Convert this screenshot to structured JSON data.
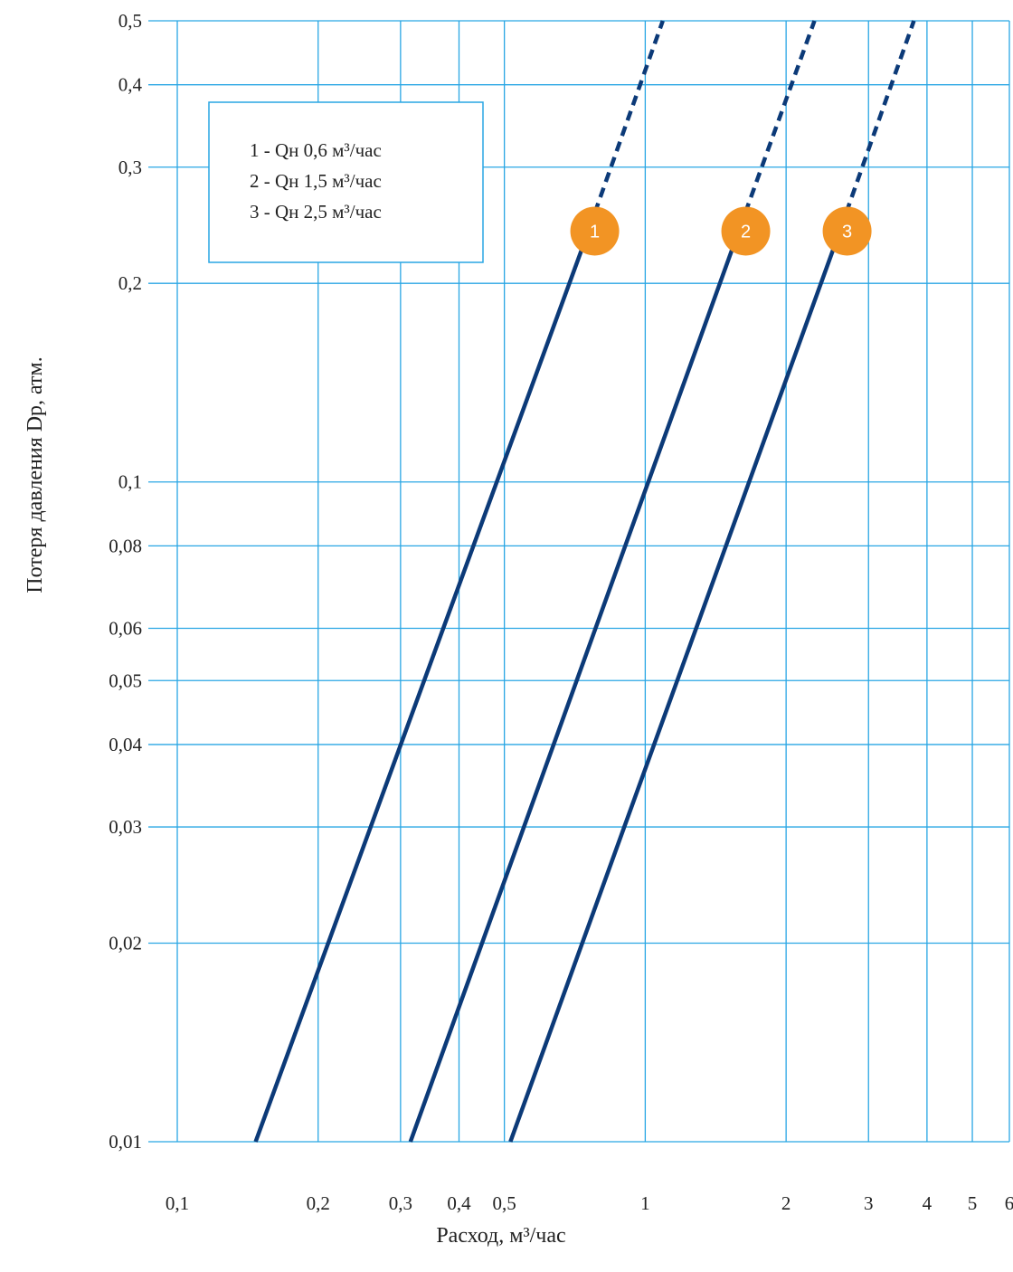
{
  "colors": {
    "grid": "#29a6e4",
    "series": "#0c3a78",
    "marker": "#f29424",
    "marker_text": "#ffffff",
    "legend_border": "#29a6e4",
    "text": "#222222"
  },
  "chart_data": {
    "type": "line",
    "xscale": "log",
    "yscale": "log",
    "xlim": [
      0.1,
      6
    ],
    "ylim": [
      0.01,
      0.5
    ],
    "grid": true,
    "xlabel": "Расход, м³/час",
    "ylabel": "Потеря давления Dp, атм.",
    "x_ticks": [
      {
        "value": 0.1,
        "label": "0,1"
      },
      {
        "value": 0.2,
        "label": "0,2"
      },
      {
        "value": 0.3,
        "label": "0,3"
      },
      {
        "value": 0.4,
        "label": "0,4"
      },
      {
        "value": 0.5,
        "label": "0,5"
      },
      {
        "value": 1,
        "label": "1"
      },
      {
        "value": 2,
        "label": "2"
      },
      {
        "value": 3,
        "label": "3"
      },
      {
        "value": 4,
        "label": "4"
      },
      {
        "value": 5,
        "label": "5"
      },
      {
        "value": 6,
        "label": "6"
      }
    ],
    "y_ticks": [
      {
        "value": 0.01,
        "label": "0,01"
      },
      {
        "value": 0.02,
        "label": "0,02"
      },
      {
        "value": 0.03,
        "label": "0,03"
      },
      {
        "value": 0.04,
        "label": "0,04"
      },
      {
        "value": 0.05,
        "label": "0,05"
      },
      {
        "value": 0.06,
        "label": "0,06"
      },
      {
        "value": 0.08,
        "label": "0,08"
      },
      {
        "value": 0.1,
        "label": "0,1"
      },
      {
        "value": 0.2,
        "label": "0,2"
      },
      {
        "value": 0.3,
        "label": "0,3"
      },
      {
        "value": 0.4,
        "label": "0,4"
      },
      {
        "value": 0.5,
        "label": "0,5"
      }
    ],
    "legend": {
      "position": "top-left",
      "entries": [
        "1 - Qн 0,6 м³/час",
        "2 - Qн 1,5 м³/час",
        "3 - Qн 2,5 м³/час"
      ]
    },
    "series": [
      {
        "marker": "1",
        "solid": [
          [
            0.147,
            0.01
          ],
          [
            0.74,
            0.23
          ]
        ],
        "dashed": [
          [
            0.74,
            0.23
          ],
          [
            1.09,
            0.5
          ]
        ]
      },
      {
        "marker": "2",
        "solid": [
          [
            0.315,
            0.01
          ],
          [
            1.55,
            0.23
          ]
        ],
        "dashed": [
          [
            1.55,
            0.23
          ],
          [
            2.3,
            0.5
          ]
        ]
      },
      {
        "marker": "3",
        "solid": [
          [
            0.515,
            0.01
          ],
          [
            2.55,
            0.23
          ]
        ],
        "dashed": [
          [
            2.55,
            0.23
          ],
          [
            3.75,
            0.5
          ]
        ]
      }
    ],
    "markers": [
      {
        "label": "1",
        "x": 0.78,
        "y": 0.24
      },
      {
        "label": "2",
        "x": 1.64,
        "y": 0.24
      },
      {
        "label": "3",
        "x": 2.7,
        "y": 0.24
      }
    ]
  }
}
